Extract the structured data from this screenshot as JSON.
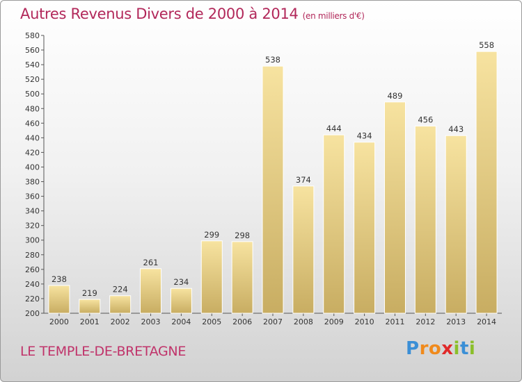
{
  "header": {
    "title": "Autres Revenus Divers de 2000 à 2014",
    "unit": "(en milliers d'€)"
  },
  "footer": {
    "place": "LE TEMPLE-DE-BRETAGNE",
    "logo_letters": [
      "P",
      "r",
      "o",
      "x",
      "i",
      "t",
      "i"
    ],
    "logo_colors": [
      "#3b8fd6",
      "#f08a1c",
      "#f08a1c",
      "#e02a2a",
      "#8bbf2a",
      "#3b8fd6",
      "#8bbf2a"
    ]
  },
  "colors": {
    "bar_light": "#f7e3a0",
    "bar_dark": "#c8ad62",
    "title": "#b2285a",
    "place": "#c0336a"
  },
  "chart_data": {
    "type": "bar",
    "title": "Autres Revenus Divers de 2000 à 2014",
    "subtitle": "(en milliers d'€)",
    "categories": [
      "2000",
      "2001",
      "2002",
      "2003",
      "2004",
      "2005",
      "2006",
      "2007",
      "2008",
      "2009",
      "2010",
      "2011",
      "2012",
      "2013",
      "2014"
    ],
    "values": [
      238,
      219,
      224,
      261,
      234,
      299,
      298,
      538,
      374,
      444,
      434,
      489,
      456,
      443,
      558
    ],
    "ylim": [
      200,
      580
    ],
    "ytick_step": 20,
    "grid": false,
    "legend": "none"
  }
}
